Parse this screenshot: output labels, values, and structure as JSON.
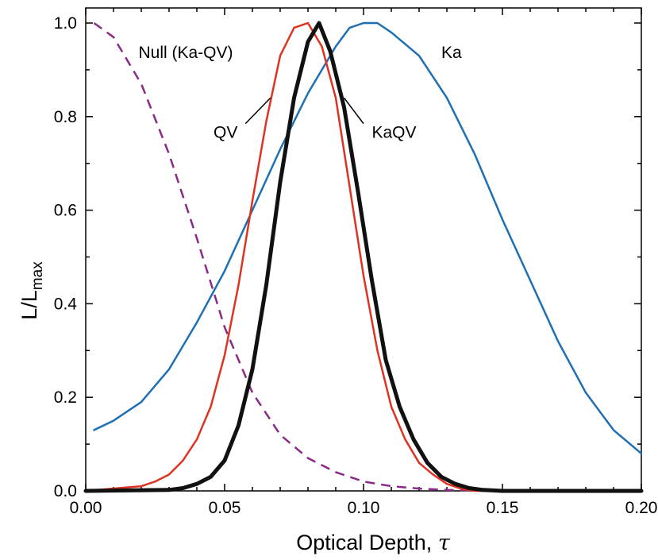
{
  "chart_data": {
    "type": "line",
    "xlabel": "Optical Depth,",
    "xlabel_symbol": "τ",
    "ylabel": "L/L",
    "ylabel_subscript": "max",
    "xlim": [
      0.0,
      0.2
    ],
    "ylim": [
      0.0,
      1.05
    ],
    "xticks": [
      0.0,
      0.05,
      0.1,
      0.15,
      0.2
    ],
    "xtick_labels": [
      "0.00",
      "0.05",
      "0.10",
      "0.15",
      "0.20"
    ],
    "yticks": [
      0.0,
      0.2,
      0.4,
      0.6,
      0.8,
      1.0
    ],
    "ytick_labels": [
      "0.0",
      "0.2",
      "0.4",
      "0.6",
      "0.8",
      "1.0"
    ],
    "grid": false,
    "legend": "none",
    "series": [
      {
        "name": "Ka",
        "color": "#1f6fb5",
        "style": "solid",
        "x": [
          0.003,
          0.01,
          0.02,
          0.03,
          0.04,
          0.05,
          0.06,
          0.07,
          0.08,
          0.09,
          0.095,
          0.1,
          0.105,
          0.11,
          0.12,
          0.13,
          0.14,
          0.15,
          0.16,
          0.17,
          0.18,
          0.19,
          0.2
        ],
        "y": [
          0.13,
          0.15,
          0.19,
          0.26,
          0.36,
          0.47,
          0.6,
          0.73,
          0.85,
          0.95,
          0.99,
          1.0,
          1.0,
          0.98,
          0.93,
          0.84,
          0.72,
          0.58,
          0.45,
          0.32,
          0.21,
          0.13,
          0.08
        ]
      },
      {
        "name": "QV",
        "color": "#dd3322",
        "style": "solid",
        "x": [
          0.0,
          0.02,
          0.025,
          0.03,
          0.035,
          0.04,
          0.045,
          0.05,
          0.055,
          0.06,
          0.065,
          0.07,
          0.075,
          0.08,
          0.085,
          0.09,
          0.095,
          0.1,
          0.105,
          0.11,
          0.115,
          0.12,
          0.125,
          0.13,
          0.135,
          0.14,
          0.15,
          0.2
        ],
        "y": [
          0.0,
          0.01,
          0.02,
          0.035,
          0.065,
          0.11,
          0.18,
          0.29,
          0.44,
          0.62,
          0.79,
          0.93,
          0.99,
          1.0,
          0.95,
          0.84,
          0.65,
          0.46,
          0.3,
          0.18,
          0.11,
          0.06,
          0.035,
          0.015,
          0.005,
          0.0,
          0.0,
          0.0
        ]
      },
      {
        "name": "KaQV",
        "color": "#111111",
        "style": "solid-thick",
        "x": [
          0.0,
          0.03,
          0.035,
          0.04,
          0.045,
          0.05,
          0.055,
          0.06,
          0.065,
          0.07,
          0.075,
          0.08,
          0.084,
          0.088,
          0.093,
          0.098,
          0.103,
          0.108,
          0.113,
          0.118,
          0.123,
          0.128,
          0.133,
          0.138,
          0.143,
          0.15,
          0.2
        ],
        "y": [
          0.0,
          0.002,
          0.006,
          0.015,
          0.03,
          0.065,
          0.14,
          0.26,
          0.44,
          0.66,
          0.84,
          0.96,
          1.0,
          0.94,
          0.82,
          0.64,
          0.45,
          0.28,
          0.18,
          0.11,
          0.06,
          0.03,
          0.015,
          0.006,
          0.002,
          0.0,
          0.0
        ]
      },
      {
        "name": "Null (Ka-QV)",
        "color": "#8a2a86",
        "style": "dashed",
        "x": [
          0.003,
          0.01,
          0.02,
          0.03,
          0.04,
          0.05,
          0.06,
          0.07,
          0.08,
          0.09,
          0.1,
          0.11,
          0.12,
          0.13,
          0.14,
          0.15
        ],
        "y": [
          1.0,
          0.97,
          0.87,
          0.72,
          0.54,
          0.35,
          0.21,
          0.12,
          0.07,
          0.04,
          0.02,
          0.01,
          0.005,
          0.002,
          0.001,
          0.0
        ]
      }
    ],
    "annotations": [
      {
        "text": "Null (Ka-QV)",
        "x": 0.019,
        "y": 0.925
      },
      {
        "text": "Ka",
        "x": 0.128,
        "y": 0.925
      },
      {
        "text": "QV",
        "x": 0.046,
        "y": 0.755,
        "leader": [
          0.0575,
          0.785,
          0.0665,
          0.84
        ]
      },
      {
        "text": "KaQV",
        "x": 0.103,
        "y": 0.755,
        "leader": [
          0.1,
          0.785,
          0.093,
          0.84
        ]
      }
    ]
  }
}
